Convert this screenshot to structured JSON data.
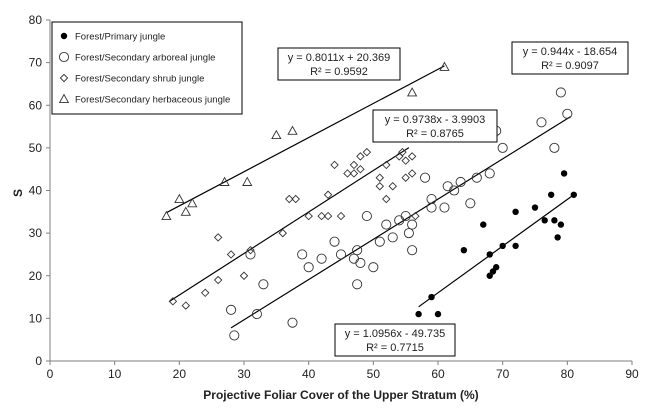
{
  "chart_data": {
    "type": "scatter",
    "xlabel": "Projective Foliar Cover of the Upper Stratum (%)",
    "ylabel": "S",
    "xlim": [
      0,
      90
    ],
    "ylim": [
      0,
      80
    ],
    "xticks": [
      0,
      10,
      20,
      30,
      40,
      50,
      60,
      70,
      80,
      90
    ],
    "yticks": [
      0,
      10,
      20,
      30,
      40,
      50,
      60,
      70,
      80
    ],
    "grid": false,
    "legend_position": "top-left",
    "series": [
      {
        "name": "Forest/Primary jungle",
        "marker": "filled-circle",
        "points": [
          [
            57,
            11
          ],
          [
            59,
            15
          ],
          [
            60,
            11
          ],
          [
            64,
            26
          ],
          [
            67,
            32
          ],
          [
            68,
            25
          ],
          [
            68,
            20
          ],
          [
            68.5,
            21
          ],
          [
            69,
            22
          ],
          [
            70,
            27
          ],
          [
            72,
            27
          ],
          [
            72,
            35
          ],
          [
            75,
            36
          ],
          [
            76.5,
            33
          ],
          [
            77.5,
            39
          ],
          [
            78,
            33
          ],
          [
            78.5,
            29
          ],
          [
            79,
            32
          ],
          [
            79.5,
            44
          ],
          [
            81,
            39
          ]
        ],
        "trendline": {
          "slope": 1.0956,
          "intercept": -49.735,
          "x_range": [
            57,
            81
          ],
          "equation": "y = 1.0956x - 49.735",
          "r2": "R² = 0.7715"
        }
      },
      {
        "name": "Forest/Secondary arboreal jungle",
        "marker": "open-circle",
        "points": [
          [
            28,
            12
          ],
          [
            28.5,
            6
          ],
          [
            31,
            25
          ],
          [
            32,
            11
          ],
          [
            33,
            18
          ],
          [
            37.5,
            9
          ],
          [
            39,
            25
          ],
          [
            40,
            22
          ],
          [
            42,
            24
          ],
          [
            44,
            28
          ],
          [
            45,
            25
          ],
          [
            47,
            24
          ],
          [
            47.5,
            26
          ],
          [
            47.5,
            18
          ],
          [
            48,
            23
          ],
          [
            49,
            34
          ],
          [
            50,
            22
          ],
          [
            51,
            28
          ],
          [
            52,
            32
          ],
          [
            53,
            29
          ],
          [
            54,
            33
          ],
          [
            55,
            34
          ],
          [
            55.5,
            30
          ],
          [
            56,
            26
          ],
          [
            56,
            32
          ],
          [
            58,
            43
          ],
          [
            59,
            36
          ],
          [
            59,
            38
          ],
          [
            61,
            36
          ],
          [
            61.5,
            41
          ],
          [
            62.5,
            40
          ],
          [
            63.5,
            42
          ],
          [
            65,
            37
          ],
          [
            66,
            43
          ],
          [
            68,
            44
          ],
          [
            69,
            54
          ],
          [
            70,
            50
          ],
          [
            76,
            56
          ],
          [
            78,
            50
          ],
          [
            79,
            63
          ],
          [
            80,
            58
          ]
        ],
        "trendline": {
          "slope": 0.944,
          "intercept": -18.654,
          "x_range": [
            28,
            80.5
          ],
          "equation": "y = 0.944x - 18.654",
          "r2": "R² = 0.9097"
        }
      },
      {
        "name": "Forest/Secondary shrub jungle",
        "marker": "open-diamond",
        "points": [
          [
            19,
            14
          ],
          [
            21,
            13
          ],
          [
            24,
            16
          ],
          [
            26,
            19
          ],
          [
            26,
            29
          ],
          [
            28,
            25
          ],
          [
            30,
            20
          ],
          [
            31,
            26
          ],
          [
            36,
            30
          ],
          [
            37,
            38
          ],
          [
            38,
            38
          ],
          [
            40,
            34
          ],
          [
            42,
            34
          ],
          [
            43,
            34
          ],
          [
            43,
            39
          ],
          [
            44,
            46
          ],
          [
            45,
            34
          ],
          [
            46,
            44
          ],
          [
            47,
            46
          ],
          [
            47,
            44
          ],
          [
            48,
            48
          ],
          [
            48,
            45
          ],
          [
            49,
            49
          ],
          [
            51,
            43
          ],
          [
            51,
            41
          ],
          [
            52,
            46
          ],
          [
            52,
            38
          ],
          [
            53,
            41
          ],
          [
            54,
            48
          ],
          [
            54.5,
            49
          ],
          [
            55,
            47
          ],
          [
            55,
            43
          ],
          [
            56,
            48
          ],
          [
            56,
            44
          ],
          [
            56.5,
            34
          ]
        ],
        "trendline": {
          "slope": 0.9738,
          "intercept": -3.9903,
          "x_range": [
            18.5,
            55.5
          ],
          "equation": "y = 0.9738x - 3.9903",
          "r2": "R² = 0.8765"
        }
      },
      {
        "name": "Forest/Secondary herbaceous jungle",
        "marker": "open-triangle",
        "points": [
          [
            18,
            34
          ],
          [
            20,
            38
          ],
          [
            21,
            35
          ],
          [
            22,
            37
          ],
          [
            27,
            42
          ],
          [
            30.5,
            42
          ],
          [
            35,
            53
          ],
          [
            37.5,
            54
          ],
          [
            56,
            63
          ],
          [
            61,
            69
          ]
        ],
        "trendline": {
          "slope": 0.8011,
          "intercept": 20.369,
          "x_range": [
            18,
            61
          ],
          "equation": "y = 0.8011x + 20.369",
          "r2": "R² = 0.9592"
        }
      }
    ]
  }
}
